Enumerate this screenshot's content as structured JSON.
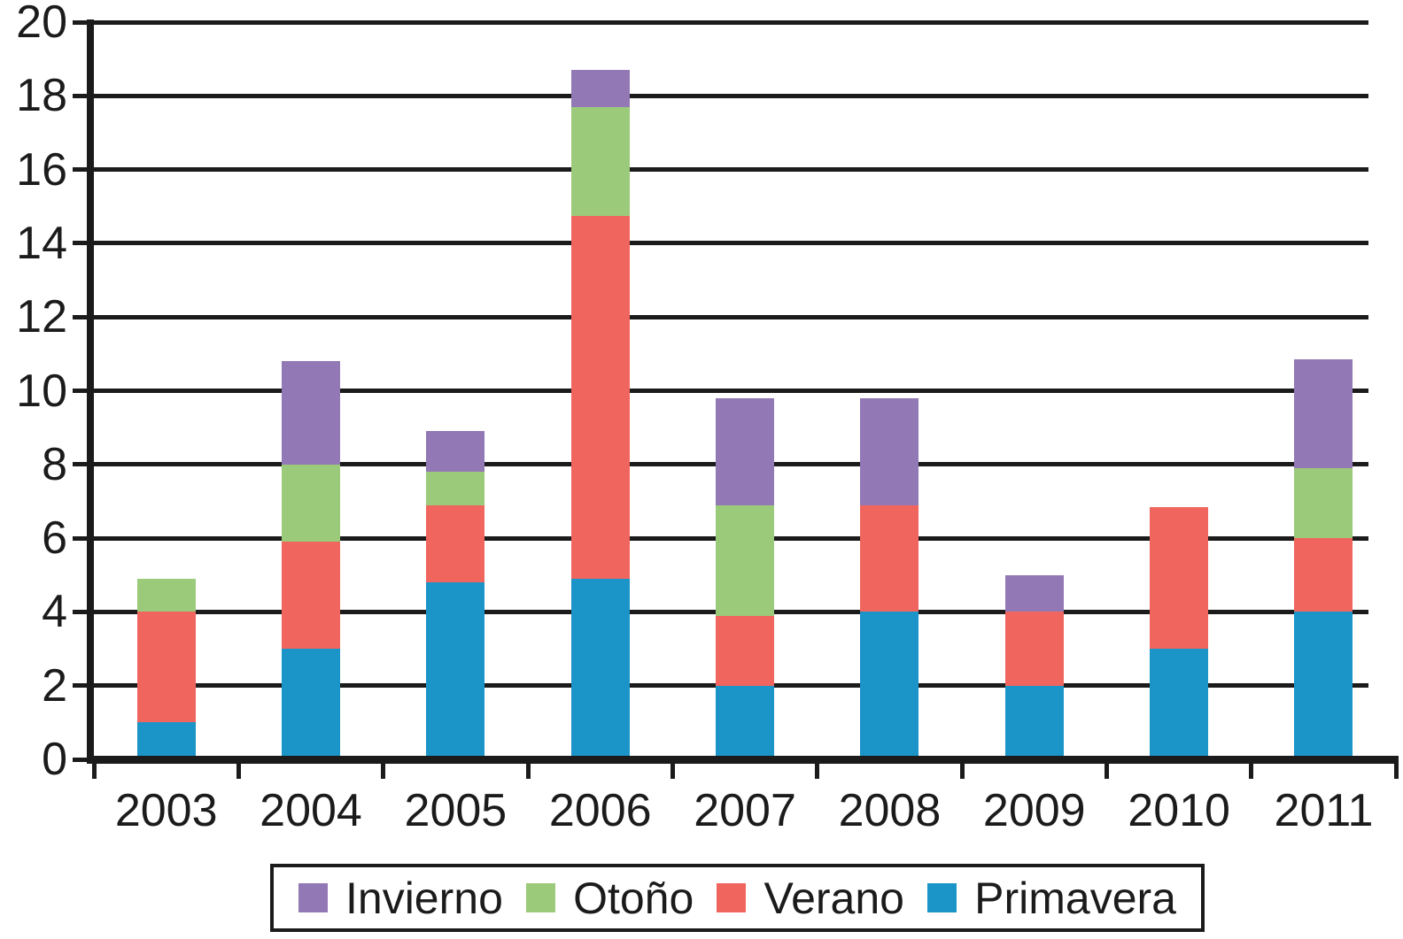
{
  "chart_data": {
    "type": "bar",
    "stacked": true,
    "title": "",
    "xlabel": "",
    "ylabel": "",
    "grid": true,
    "categories": [
      "2003",
      "2004",
      "2005",
      "2006",
      "2007",
      "2008",
      "2009",
      "2010",
      "2011"
    ],
    "series": [
      {
        "name": "Primavera",
        "color": "#1b94c7",
        "values": [
          1.0,
          3.0,
          4.8,
          4.9,
          2.0,
          4.0,
          2.0,
          3.0,
          4.0
        ]
      },
      {
        "name": "Verano",
        "color": "#f0665f",
        "values": [
          3.0,
          2.9,
          2.1,
          9.85,
          1.9,
          2.9,
          2.0,
          3.85,
          2.0
        ]
      },
      {
        "name": "Otoño",
        "color": "#9bca7a",
        "values": [
          0.9,
          2.1,
          0.9,
          2.95,
          3.0,
          0,
          0,
          0,
          1.9
        ]
      },
      {
        "name": "Invierno",
        "color": "#9378b6",
        "values": [
          0,
          2.8,
          1.1,
          1.0,
          2.9,
          2.9,
          1.0,
          0,
          2.95
        ]
      }
    ],
    "bar_totals": [
      4.9,
      10.8,
      8.9,
      18.7,
      9.8,
      9.8,
      5.0,
      6.85,
      10.85
    ],
    "y_axis": {
      "min": 0,
      "max": 20,
      "step": 2,
      "tick_labels": [
        "0",
        "2",
        "4",
        "6",
        "8",
        "10",
        "12",
        "14",
        "16",
        "18",
        "20"
      ]
    },
    "legend": {
      "position": "bottom",
      "order": [
        "Invierno",
        "Otoño",
        "Verano",
        "Primavera"
      ]
    }
  },
  "colors": {
    "axis": "#1b1b1b",
    "background": "#ffffff"
  }
}
